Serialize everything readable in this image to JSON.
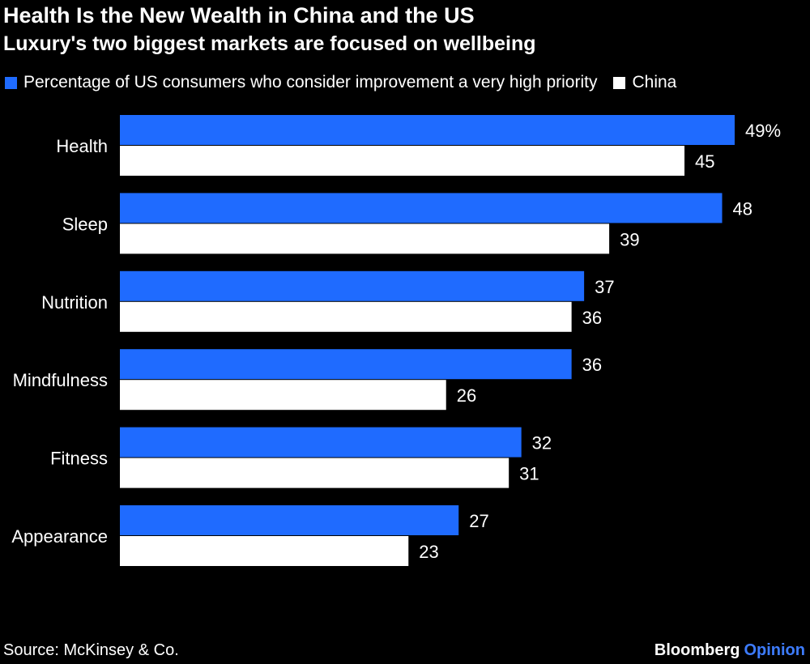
{
  "title": "Health Is the New Wealth in China and the US",
  "subtitle": "Luxury's two biggest markets are focused on wellbeing",
  "colors": {
    "us": "#1f6bff",
    "china": "#ffffff",
    "background": "#000000",
    "text": "#ffffff",
    "brand_accent": "#3d7cff"
  },
  "legend": {
    "us_label": "Percentage of US consumers who consider improvement a very high priority",
    "china_label": "China"
  },
  "chart_data": {
    "type": "bar",
    "orientation": "horizontal",
    "title": "Health Is the New Wealth in China and the US",
    "subtitle": "Luxury's two biggest markets are focused on wellbeing",
    "categories": [
      "Health",
      "Sleep",
      "Nutrition",
      "Mindfulness",
      "Fitness",
      "Appearance"
    ],
    "series": [
      {
        "name": "Percentage of US consumers who consider improvement a very high priority",
        "values": [
          49,
          48,
          37,
          36,
          32,
          27
        ],
        "labels": [
          "49%",
          "48",
          "37",
          "36",
          "32",
          "27"
        ]
      },
      {
        "name": "China",
        "values": [
          45,
          39,
          36,
          26,
          31,
          23
        ],
        "labels": [
          "45",
          "39",
          "36",
          "26",
          "31",
          "23"
        ]
      }
    ],
    "xlim": [
      0,
      49
    ],
    "grid": false,
    "legend_position": "top-left"
  },
  "source": "Source: McKinsey & Co.",
  "brand": {
    "name": "Bloomberg",
    "suffix": "Opinion"
  }
}
